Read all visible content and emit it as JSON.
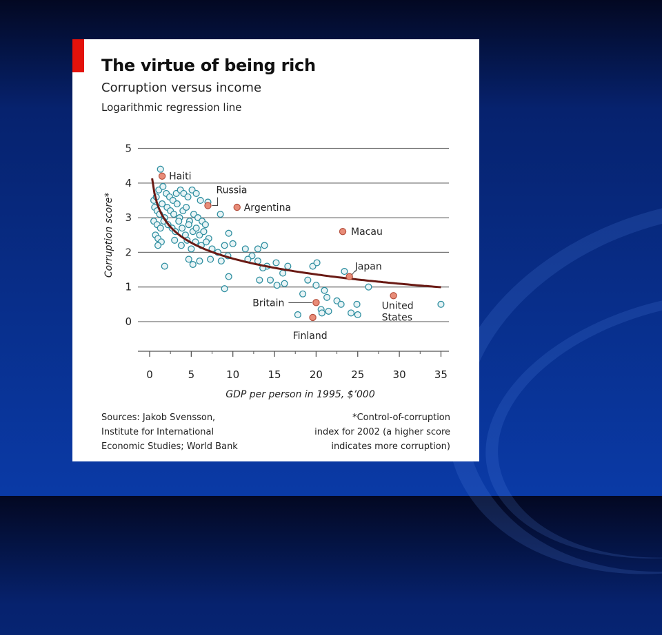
{
  "chart_data": {
    "type": "scatter",
    "title": "The virtue of being rich",
    "subtitle": "Corruption versus income",
    "note": "Logarithmic regression line",
    "xlabel": "GDP per person in 1995, $’000",
    "ylabel": "Corruption score*",
    "xlim": [
      0,
      35
    ],
    "ylim": [
      -0.8,
      5
    ],
    "x_ticks": [
      "0",
      "5",
      "10",
      "15",
      "20",
      "25",
      "30",
      "35"
    ],
    "y_ticks": [
      "0",
      "1",
      "2",
      "3",
      "4",
      "5"
    ],
    "grid": true,
    "colors": {
      "point_fill": "#e8f4f6",
      "point_stroke": "#2e8ea0",
      "highlight_fill": "#e88c78",
      "highlight_stroke": "#b5503e",
      "regression": "#6a1a14",
      "accent": "#e3120b"
    },
    "regression": {
      "type": "logarithmic",
      "a": 3.34,
      "b": -0.66,
      "x_range": [
        0.3,
        35
      ]
    },
    "highlighted_points": [
      {
        "label": "Haiti",
        "x": 1.5,
        "y": 4.2
      },
      {
        "label": "Russia",
        "x": 7.0,
        "y": 3.35
      },
      {
        "label": "Argentina",
        "x": 10.5,
        "y": 3.3
      },
      {
        "label": "Macau",
        "x": 23.2,
        "y": 2.6
      },
      {
        "label": "Japan",
        "x": 24.0,
        "y": 1.3
      },
      {
        "label": "Britain",
        "x": 20.0,
        "y": 0.55
      },
      {
        "label": "United States",
        "x": 29.3,
        "y": 0.75
      },
      {
        "label": "Finland",
        "x": 19.6,
        "y": 0.12
      }
    ],
    "points": [
      [
        1.3,
        4.4
      ],
      [
        0.5,
        3.5
      ],
      [
        0.8,
        3.6
      ],
      [
        1.1,
        3.8
      ],
      [
        1.6,
        3.9
      ],
      [
        2.0,
        3.7
      ],
      [
        2.4,
        3.6
      ],
      [
        2.8,
        3.5
      ],
      [
        3.2,
        3.7
      ],
      [
        3.7,
        3.8
      ],
      [
        4.1,
        3.7
      ],
      [
        4.6,
        3.6
      ],
      [
        5.1,
        3.8
      ],
      [
        5.6,
        3.7
      ],
      [
        6.1,
        3.5
      ],
      [
        7.0,
        3.45
      ],
      [
        0.6,
        3.3
      ],
      [
        0.9,
        3.2
      ],
      [
        1.2,
        3.1
      ],
      [
        1.5,
        3.4
      ],
      [
        1.8,
        3.0
      ],
      [
        2.1,
        3.3
      ],
      [
        2.5,
        3.2
      ],
      [
        2.9,
        3.1
      ],
      [
        3.3,
        3.4
      ],
      [
        3.6,
        3.0
      ],
      [
        4.0,
        3.2
      ],
      [
        4.4,
        3.3
      ],
      [
        4.8,
        2.9
      ],
      [
        5.3,
        3.1
      ],
      [
        5.8,
        3.0
      ],
      [
        6.3,
        2.9
      ],
      [
        6.7,
        2.8
      ],
      [
        8.5,
        3.1
      ],
      [
        0.5,
        2.9
      ],
      [
        0.9,
        2.8
      ],
      [
        1.3,
        2.7
      ],
      [
        1.7,
        2.9
      ],
      [
        2.2,
        2.8
      ],
      [
        2.7,
        2.7
      ],
      [
        3.1,
        2.6
      ],
      [
        3.5,
        2.9
      ],
      [
        3.9,
        2.7
      ],
      [
        4.3,
        2.5
      ],
      [
        4.7,
        2.8
      ],
      [
        5.2,
        2.6
      ],
      [
        5.6,
        2.7
      ],
      [
        6.0,
        2.5
      ],
      [
        6.5,
        2.6
      ],
      [
        7.1,
        2.4
      ],
      [
        9.5,
        2.55
      ],
      [
        0.7,
        2.5
      ],
      [
        1.0,
        2.4
      ],
      [
        1.4,
        2.3
      ],
      [
        3.0,
        2.35
      ],
      [
        3.8,
        2.2
      ],
      [
        4.5,
        2.35
      ],
      [
        5.0,
        2.1
      ],
      [
        5.5,
        2.3
      ],
      [
        6.2,
        2.2
      ],
      [
        6.8,
        2.3
      ],
      [
        7.5,
        2.1
      ],
      [
        8.2,
        2.0
      ],
      [
        9.0,
        2.2
      ],
      [
        10.0,
        2.25
      ],
      [
        11.5,
        2.1
      ],
      [
        12.3,
        1.9
      ],
      [
        13.0,
        2.1
      ],
      [
        13.8,
        2.2
      ],
      [
        14.1,
        1.6
      ],
      [
        1.0,
        2.2
      ],
      [
        4.7,
        1.8
      ],
      [
        5.2,
        1.65
      ],
      [
        6.0,
        1.75
      ],
      [
        7.3,
        1.8
      ],
      [
        8.6,
        1.75
      ],
      [
        9.4,
        1.9
      ],
      [
        11.8,
        1.8
      ],
      [
        13.0,
        1.75
      ],
      [
        13.6,
        1.55
      ],
      [
        15.2,
        1.7
      ],
      [
        16.0,
        1.4
      ],
      [
        16.6,
        1.6
      ],
      [
        19.6,
        1.6
      ],
      [
        20.1,
        1.7
      ],
      [
        23.4,
        1.45
      ],
      [
        1.8,
        1.6
      ],
      [
        9.5,
        1.3
      ],
      [
        13.2,
        1.2
      ],
      [
        14.5,
        1.2
      ],
      [
        16.2,
        1.1
      ],
      [
        15.3,
        1.05
      ],
      [
        19.0,
        1.2
      ],
      [
        20.0,
        1.05
      ],
      [
        21.0,
        0.9
      ],
      [
        26.3,
        1.0
      ],
      [
        9.0,
        0.95
      ],
      [
        18.4,
        0.8
      ],
      [
        21.3,
        0.7
      ],
      [
        22.5,
        0.6
      ],
      [
        23.0,
        0.5
      ],
      [
        24.9,
        0.5
      ],
      [
        35.0,
        0.5
      ],
      [
        20.6,
        0.35
      ],
      [
        21.5,
        0.3
      ],
      [
        24.2,
        0.25
      ],
      [
        25.0,
        0.2
      ],
      [
        17.8,
        0.2
      ],
      [
        20.7,
        0.25
      ]
    ],
    "annotations": [
      {
        "label": "Haiti",
        "lines": [
          "Haiti"
        ]
      },
      {
        "label": "Russia",
        "lines": [
          "Russia"
        ]
      },
      {
        "label": "Argentina",
        "lines": [
          "Argentina"
        ]
      },
      {
        "label": "Macau",
        "lines": [
          "Macau"
        ]
      },
      {
        "label": "Japan",
        "lines": [
          "Japan"
        ]
      },
      {
        "label": "Britain",
        "lines": [
          "Britain"
        ]
      },
      {
        "label": "United States",
        "lines": [
          "United",
          "States"
        ]
      },
      {
        "label": "Finland",
        "lines": [
          "Finland"
        ]
      }
    ]
  },
  "sources": "Sources: Jakob Svensson,\nInstitute for International\nEconomic Studies; World Bank",
  "footnote": "*Control-of-corruption\nindex for 2002 (a higher score\nindicates more corruption)"
}
